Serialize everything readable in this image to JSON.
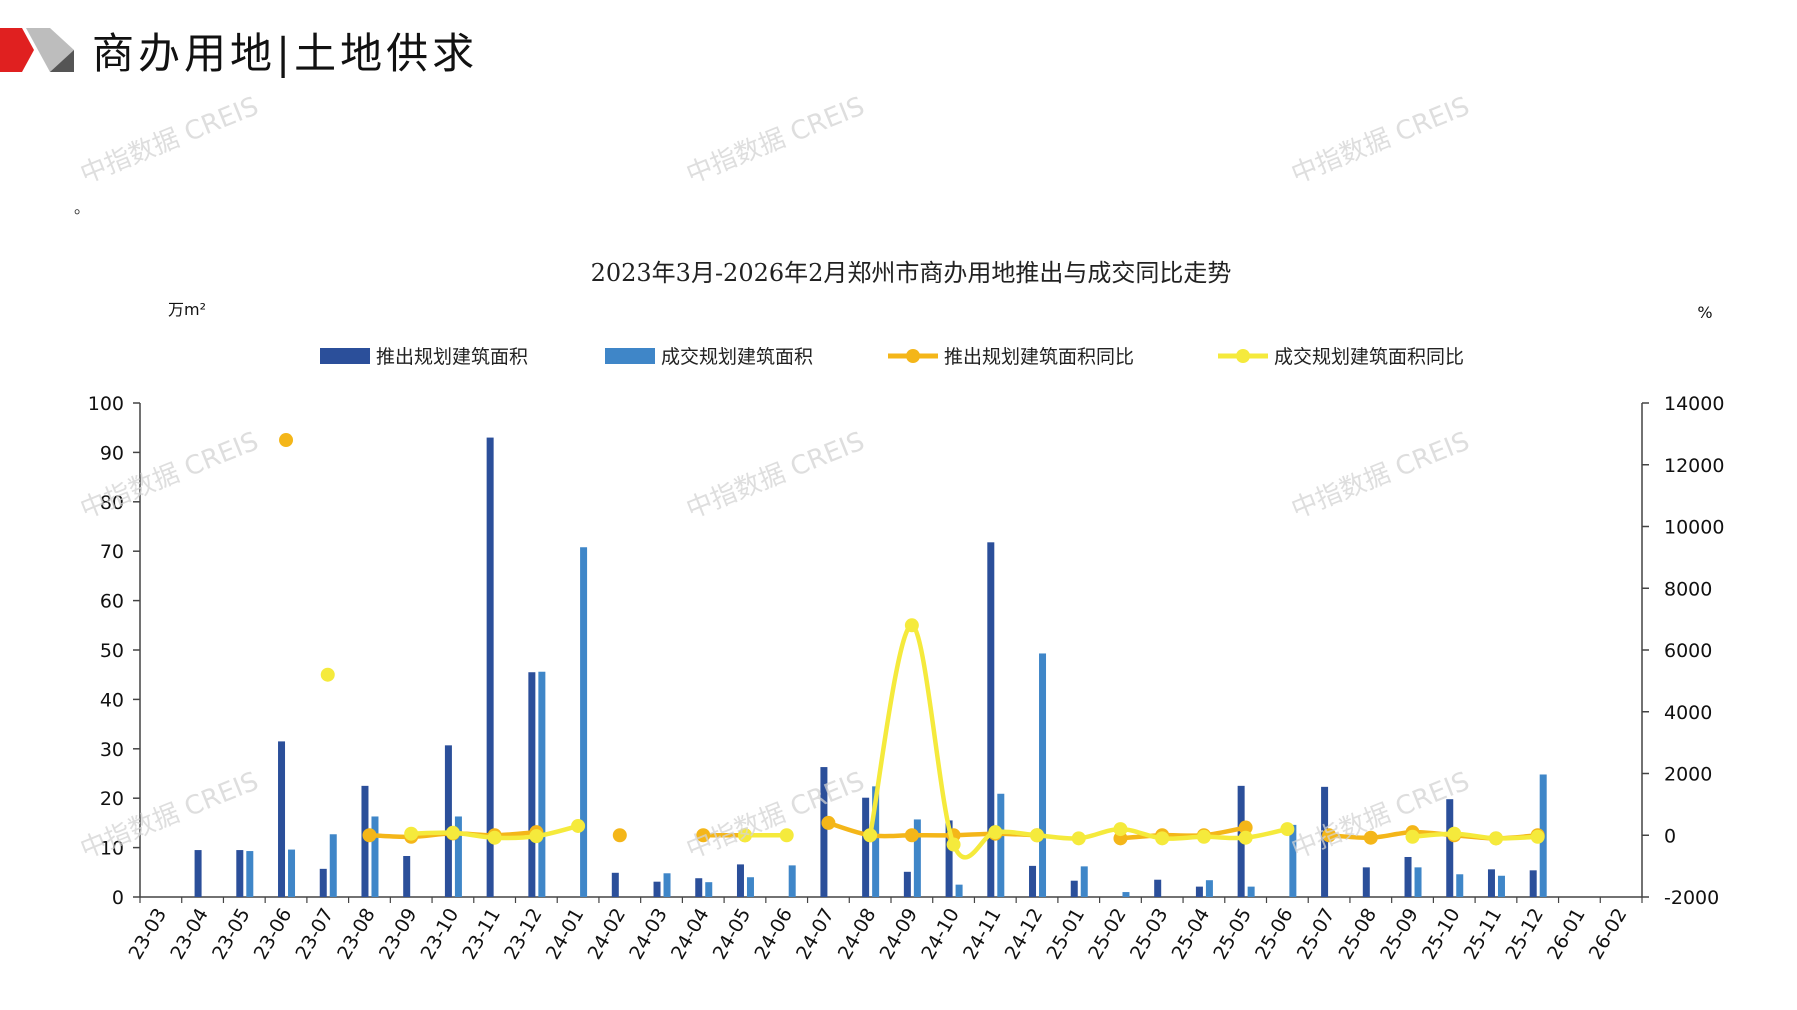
{
  "header": {
    "title": "商办用地|土地供求",
    "note": "。",
    "watermark_text": "中指数据 CREIS"
  },
  "colors": {
    "logo_red": "#e02020",
    "logo_gray": "#bdbdbd",
    "supply_bar": "#2b4f9a",
    "deal_bar": "#3f86c8",
    "supply_yoy": "#f4b619",
    "deal_yoy": "#f5ea3c"
  },
  "chart_data": {
    "type": "bar",
    "title": "2023年3月-2026年2月郑州市商办用地推出与成交同比走势",
    "y_left_unit": "万m²",
    "y_right_unit": "%",
    "ylim_left": [
      0,
      100
    ],
    "ylim_right": [
      -2000,
      14000
    ],
    "y_left_ticks": [
      0,
      10,
      20,
      30,
      40,
      50,
      60,
      70,
      80,
      90,
      100
    ],
    "y_right_ticks": [
      -2000,
      0,
      2000,
      4000,
      6000,
      8000,
      10000,
      12000,
      14000
    ],
    "legend_position": "top",
    "categories": [
      "23-03",
      "23-04",
      "23-05",
      "23-06",
      "23-07",
      "23-08",
      "23-09",
      "23-10",
      "23-11",
      "23-12",
      "24-01",
      "24-02",
      "24-03",
      "24-04",
      "24-05",
      "24-06",
      "24-07",
      "24-08",
      "24-09",
      "24-10",
      "24-11",
      "24-12",
      "25-01",
      "25-02",
      "25-03",
      "25-04",
      "25-05",
      "25-06",
      "25-07",
      "25-08",
      "25-09",
      "25-10",
      "25-11",
      "25-12",
      "26-01",
      "26-02"
    ],
    "series": [
      {
        "name": "推出规划建筑面积",
        "type": "bar",
        "axis": "left",
        "values": [
          0,
          9.5,
          9.5,
          31.5,
          5.7,
          22.5,
          8.3,
          30.7,
          93,
          45.5,
          0,
          4.9,
          3.1,
          3.8,
          6.6,
          0,
          26.3,
          20.1,
          5.1,
          15.5,
          71.8,
          6.3,
          3.3,
          0,
          3.5,
          2.1,
          22.5,
          0,
          22.3,
          6.0,
          8.1,
          19.8,
          5.6,
          5.4,
          0,
          0
        ]
      },
      {
        "name": "成交规划建筑面积",
        "type": "bar",
        "axis": "left",
        "values": [
          0,
          0,
          9.3,
          9.6,
          12.7,
          16.3,
          0,
          16.3,
          0,
          45.6,
          70.8,
          0,
          4.8,
          3.0,
          4.0,
          6.4,
          0,
          22.4,
          15.7,
          2.5,
          20.9,
          49.3,
          6.2,
          1.0,
          0,
          3.4,
          2.1,
          14.6,
          0,
          0,
          6.0,
          4.6,
          4.3,
          24.8,
          0,
          0
        ]
      },
      {
        "name": "推出规划建筑面积同比",
        "type": "line",
        "axis": "right",
        "values": [
          null,
          null,
          null,
          12800,
          null,
          0,
          -50,
          60,
          0,
          100,
          null,
          0,
          null,
          0,
          0,
          null,
          400,
          0,
          0,
          0,
          50,
          0,
          null,
          -100,
          0,
          0,
          250,
          null,
          0,
          -80,
          100,
          0,
          -100,
          0,
          null,
          null
        ]
      },
      {
        "name": "成交规划建筑面积同比",
        "type": "line",
        "axis": "right",
        "values": [
          null,
          null,
          null,
          null,
          5200,
          null,
          50,
          80,
          -80,
          -30,
          300,
          null,
          null,
          null,
          0,
          0,
          null,
          0,
          6800,
          -300,
          100,
          0,
          -100,
          200,
          -100,
          -50,
          -80,
          200,
          null,
          null,
          -50,
          50,
          -100,
          -50,
          null,
          null
        ]
      }
    ]
  }
}
